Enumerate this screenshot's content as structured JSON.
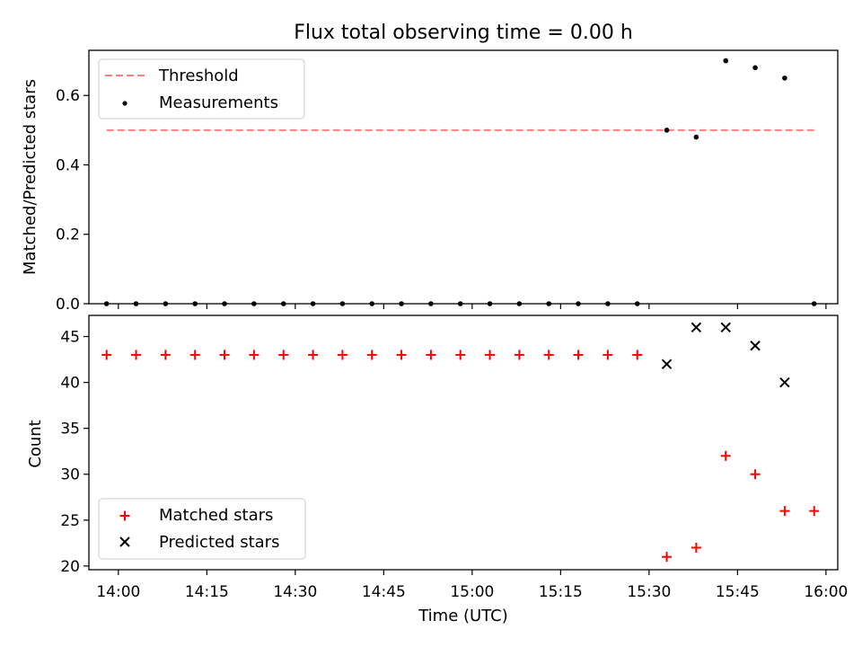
{
  "chart_data": [
    {
      "type": "scatter",
      "title": "Flux total observing time = 0.00 h",
      "ylabel": "Matched/Predicted stars",
      "xlim": [
        "13:55",
        "16:02"
      ],
      "ylim": [
        0,
        0.73
      ],
      "yticks": [
        0.0,
        0.2,
        0.4,
        0.6
      ],
      "ytick_labels": [
        "0.0",
        "0.2",
        "0.4",
        "0.6"
      ],
      "legend_position": "upper-left",
      "threshold": {
        "name": "Threshold",
        "value": 0.5,
        "x_range": [
          "13:58",
          "15:58"
        ],
        "color": "#ff7f7f",
        "style": "dashed"
      },
      "series": [
        {
          "name": "Measurements",
          "color": "#000000",
          "marker": "dot",
          "x": [
            "13:58",
            "14:03",
            "14:08",
            "14:13",
            "14:18",
            "14:23",
            "14:28",
            "14:33",
            "14:38",
            "14:43",
            "14:48",
            "14:53",
            "14:58",
            "15:03",
            "15:08",
            "15:13",
            "15:18",
            "15:23",
            "15:28",
            "15:33",
            "15:38",
            "15:43",
            "15:48",
            "15:53",
            "15:58"
          ],
          "y": [
            0,
            0,
            0,
            0,
            0,
            0,
            0,
            0,
            0,
            0,
            0,
            0,
            0,
            0,
            0,
            0,
            0,
            0,
            0,
            0.5,
            0.48,
            0.7,
            0.68,
            0.65,
            0
          ]
        }
      ]
    },
    {
      "type": "scatter",
      "xlabel": "Time (UTC)",
      "ylabel": "Count",
      "xlim": [
        "13:55",
        "16:02"
      ],
      "ylim": [
        19.6,
        47.3
      ],
      "xticks": [
        "14:00",
        "14:15",
        "14:30",
        "14:45",
        "15:00",
        "15:15",
        "15:30",
        "15:45",
        "16:00"
      ],
      "yticks": [
        20,
        25,
        30,
        35,
        40,
        45
      ],
      "ytick_labels": [
        "20",
        "25",
        "30",
        "35",
        "40",
        "45"
      ],
      "legend_position": "lower-left",
      "series": [
        {
          "name": "Matched stars",
          "color": "#ff0000",
          "marker": "plus",
          "x": [
            "13:58",
            "14:03",
            "14:08",
            "14:13",
            "14:18",
            "14:23",
            "14:28",
            "14:33",
            "14:38",
            "14:43",
            "14:48",
            "14:53",
            "14:58",
            "15:03",
            "15:08",
            "15:13",
            "15:18",
            "15:23",
            "15:28",
            "15:33",
            "15:38",
            "15:43",
            "15:48",
            "15:53",
            "15:58"
          ],
          "y": [
            43,
            43,
            43,
            43,
            43,
            43,
            43,
            43,
            43,
            43,
            43,
            43,
            43,
            43,
            43,
            43,
            43,
            43,
            43,
            21,
            22,
            32,
            30,
            26,
            26
          ]
        },
        {
          "name": "Predicted stars",
          "color": "#000000",
          "marker": "x",
          "x": [
            "15:33",
            "15:38",
            "15:43",
            "15:48",
            "15:53"
          ],
          "y": [
            42,
            46,
            46,
            44,
            40
          ]
        }
      ]
    }
  ]
}
